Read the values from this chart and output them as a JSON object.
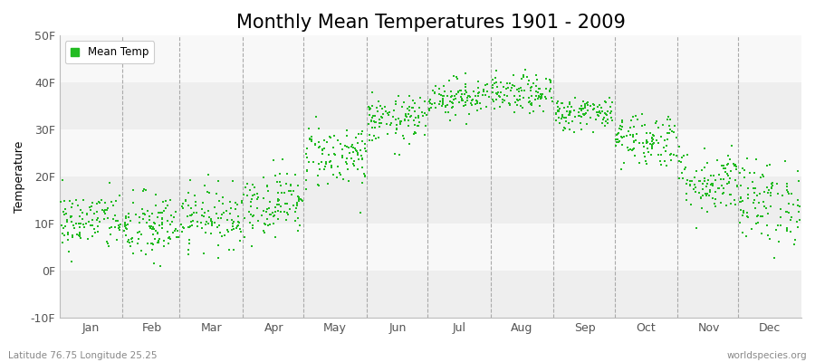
{
  "title": "Monthly Mean Temperatures 1901 - 2009",
  "ylabel": "Temperature",
  "ylim": [
    -10,
    50
  ],
  "yticks": [
    -10,
    0,
    10,
    20,
    30,
    40,
    50
  ],
  "ytick_labels": [
    "-10F",
    "0F",
    "10F",
    "20F",
    "30F",
    "40F",
    "50F"
  ],
  "months": [
    "Jan",
    "Feb",
    "Mar",
    "Apr",
    "May",
    "Jun",
    "Jul",
    "Aug",
    "Sep",
    "Oct",
    "Nov",
    "Dec"
  ],
  "dot_color": "#22bb22",
  "background_color": "#ffffff",
  "band_color_light": "#eeeeee",
  "band_color_white": "#f8f8f8",
  "legend_label": "Mean Temp",
  "subtitle_left": "Latitude 76.75 Longitude 25.25",
  "subtitle_right": "worldspecies.org",
  "title_fontsize": 15,
  "label_fontsize": 9,
  "n_years": 109,
  "monthly_means": [
    10.5,
    9.0,
    11.5,
    14.5,
    24.5,
    32.0,
    37.0,
    37.5,
    33.5,
    28.0,
    19.0,
    14.5
  ],
  "monthly_stds": [
    3.2,
    3.8,
    3.2,
    3.5,
    3.5,
    2.5,
    2.0,
    2.0,
    1.8,
    3.0,
    3.5,
    4.5
  ],
  "month_starts": [
    0,
    31,
    59,
    90,
    120,
    151,
    181,
    212,
    243,
    273,
    304,
    334
  ],
  "month_lengths": [
    31,
    28,
    31,
    30,
    31,
    30,
    31,
    31,
    30,
    31,
    30,
    31
  ],
  "month_centers": [
    15.5,
    45.5,
    74.5,
    105.5,
    135.5,
    166.5,
    196.5,
    227.5,
    258.5,
    288.5,
    319.5,
    349.5
  ]
}
